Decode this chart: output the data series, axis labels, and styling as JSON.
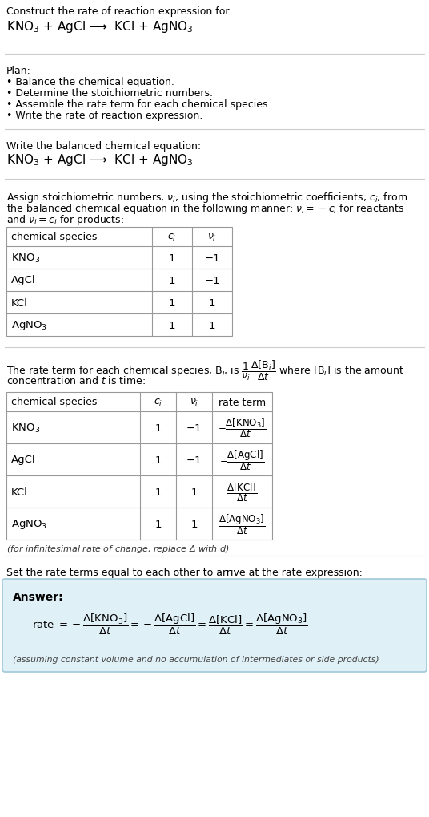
{
  "bg_color": "#ffffff",
  "answer_box_color": "#dff0f7",
  "answer_box_edge": "#a0c8d8",
  "text_color": "#000000",
  "title_text": "Construct the rate of reaction expression for:",
  "reaction_header": "KNO$_3$ + AgCl ⟶  KCl + AgNO$_3$",
  "plan_header": "Plan:",
  "plan_items": [
    "• Balance the chemical equation.",
    "• Determine the stoichiometric numbers.",
    "• Assemble the rate term for each chemical species.",
    "• Write the rate of reaction expression."
  ],
  "balanced_eq_label": "Write the balanced chemical equation:",
  "balanced_eq": "KNO$_3$ + AgCl ⟶  KCl + AgNO$_3$",
  "table1_headers": [
    "chemical species",
    "$c_i$",
    "$\\nu_i$"
  ],
  "table1_rows": [
    [
      "KNO$_3$",
      "1",
      "−1"
    ],
    [
      "AgCl",
      "1",
      "−1"
    ],
    [
      "KCl",
      "1",
      "1"
    ],
    [
      "AgNO$_3$",
      "1",
      "1"
    ]
  ],
  "table2_headers": [
    "chemical species",
    "$c_i$",
    "$\\nu_i$",
    "rate term"
  ],
  "table2_rows": [
    [
      "KNO$_3$",
      "1",
      "−1",
      "$-\\dfrac{\\Delta[\\mathrm{KNO}_3]}{\\Delta t}$"
    ],
    [
      "AgCl",
      "1",
      "−1",
      "$-\\dfrac{\\Delta[\\mathrm{AgCl}]}{\\Delta t}$"
    ],
    [
      "KCl",
      "1",
      "1",
      "$\\dfrac{\\Delta[\\mathrm{KCl}]}{\\Delta t}$"
    ],
    [
      "AgNO$_3$",
      "1",
      "1",
      "$\\dfrac{\\Delta[\\mathrm{AgNO}_3]}{\\Delta t}$"
    ]
  ],
  "infinitesimal_note": "(for infinitesimal rate of change, replace Δ with $d$)",
  "rate_expr_text": "Set the rate terms equal to each other to arrive at the rate expression:",
  "answer_label": "Answer:",
  "rate_answer": "rate $= -\\dfrac{\\Delta[\\mathrm{KNO}_3]}{\\Delta t} = -\\dfrac{\\Delta[\\mathrm{AgCl}]}{\\Delta t} = \\dfrac{\\Delta[\\mathrm{KCl}]}{\\Delta t} = \\dfrac{\\Delta[\\mathrm{AgNO}_3]}{\\Delta t}$",
  "assumption_note": "(assuming constant volume and no accumulation of intermediates or side products)"
}
